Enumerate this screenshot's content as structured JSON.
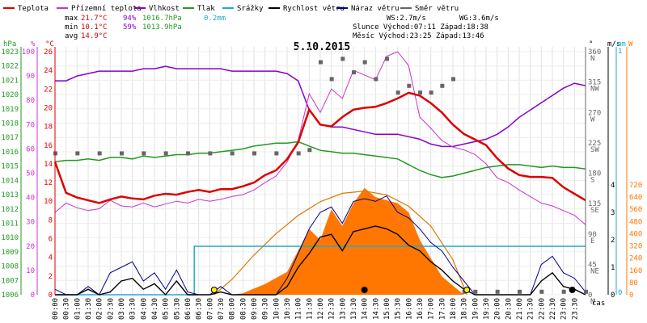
{
  "colors": {
    "temp": "#dd0000",
    "feels": "#cc33cc",
    "humidity": "#8800cc",
    "pressure": "#229922",
    "rain": "#22aacc",
    "wind_speed": "#000000",
    "gust": "#000088",
    "direction": "#666666",
    "solar": "#ff7700",
    "sun_curve": "#dd7700"
  },
  "legend": [
    {
      "key": "temp",
      "label": "Teplota"
    },
    {
      "key": "feels",
      "label": "Přízemní teplota"
    },
    {
      "key": "humidity",
      "label": "Vlhkost"
    },
    {
      "key": "pressure",
      "label": "Tlak"
    },
    {
      "key": "rain",
      "label": "Srážky"
    },
    {
      "key": "wind_speed",
      "label": "Rychlost větru"
    },
    {
      "key": "gust",
      "label": "Náraz větru"
    },
    {
      "key": "direction",
      "label": "Směr větru"
    }
  ],
  "stats": {
    "max_label": "max",
    "max_temp": "21.7°C",
    "max_hum": "94%",
    "max_press": "1016.7hPa",
    "max_rain": "0.2mm",
    "min_label": "min",
    "min_temp": "10.1°C",
    "min_hum": "59%",
    "min_press": "1013.9hPa",
    "avg_label": "avg",
    "avg_temp": "14.9°C"
  },
  "info": {
    "ws": "WS:2.7m/s",
    "wg": "WG:3.6m/s",
    "sun": "Slunce Východ:07:11  Západ:18:38",
    "moon": "Měsíc  Východ:23:25  Západ:13:46"
  },
  "chart_data": {
    "type": "line",
    "title": "5.10.2015",
    "xlabel": "čas",
    "x_ticks": [
      "00:00",
      "00:30",
      "01:00",
      "01:30",
      "02:00",
      "02:30",
      "03:00",
      "03:30",
      "04:00",
      "04:30",
      "05:00",
      "05:30",
      "06:00",
      "06:30",
      "07:00",
      "07:30",
      "08:00",
      "08:30",
      "09:00",
      "09:30",
      "10:00",
      "10:30",
      "11:00",
      "11:30",
      "12:00",
      "12:30",
      "13:00",
      "13:30",
      "14:00",
      "14:30",
      "15:00",
      "15:30",
      "16:00",
      "16:30",
      "17:00",
      "17:30",
      "18:00",
      "18:30",
      "19:00",
      "19:30",
      "20:00",
      "20:30",
      "21:00",
      "21:30",
      "22:00",
      "22:30",
      "23:00",
      "23:30"
    ],
    "axes": {
      "hPa": {
        "label": "hPa",
        "range": [
          1006,
          1023
        ],
        "ticks": [
          1006,
          1007,
          1008,
          1009,
          1010,
          1011,
          1012,
          1013,
          1014,
          1015,
          1016,
          1017,
          1018,
          1019,
          1020,
          1021,
          1022,
          1023
        ]
      },
      "percent": {
        "label": "%",
        "range": [
          0,
          100
        ],
        "ticks": [
          0,
          10,
          20,
          30,
          40,
          50,
          60,
          70,
          80,
          90,
          100
        ]
      },
      "celsius": {
        "label": "°C",
        "range": [
          0,
          26
        ],
        "ticks": [
          0,
          2,
          4,
          6,
          8,
          10,
          12,
          14,
          16,
          18,
          20,
          22,
          24,
          26
        ]
      },
      "degrees": {
        "label": "°",
        "ticks": [
          {
            "v": 0,
            "d": "N"
          },
          {
            "v": 45,
            "d": "NE"
          },
          {
            "v": 90,
            "d": "E"
          },
          {
            "v": 135,
            "d": "SE"
          },
          {
            "v": 180,
            "d": "S"
          },
          {
            "v": 225,
            "d": "SW"
          },
          {
            "v": 270,
            "d": "W"
          },
          {
            "v": 315,
            "d": "NW"
          },
          {
            "v": 360,
            "d": "N"
          }
        ]
      },
      "ms": {
        "label": "m/s",
        "range": [
          0,
          4
        ],
        "ticks": [
          0,
          1,
          2,
          3,
          4
        ]
      },
      "mm": {
        "label": "mm",
        "ticks": [
          0,
          1
        ]
      },
      "W": {
        "label": "W",
        "range": [
          0,
          720
        ],
        "ticks": [
          0,
          80,
          160,
          240,
          320,
          400,
          480,
          560,
          640,
          720
        ]
      }
    },
    "series": [
      {
        "name": "Teplota",
        "unit": "°C",
        "x": [
          0,
          0.5,
          1,
          1.5,
          2,
          2.5,
          3,
          3.5,
          4,
          4.5,
          5,
          5.5,
          6,
          6.5,
          7,
          7.5,
          8,
          8.5,
          9,
          9.5,
          10,
          10.5,
          11,
          11.5,
          12,
          12.5,
          13,
          13.5,
          14,
          14.5,
          15,
          15.5,
          16,
          16.5,
          17,
          17.5,
          18,
          18.5,
          19,
          19.5,
          20,
          20.5,
          21,
          21.5,
          22,
          22.5,
          23,
          23.5,
          24
        ],
        "values": [
          14.2,
          10.9,
          10.4,
          10.1,
          9.8,
          10.2,
          10.5,
          10.3,
          10.2,
          10.6,
          10.8,
          10.7,
          11.0,
          11.2,
          11.0,
          11.3,
          11.3,
          11.6,
          12.0,
          12.8,
          13.3,
          14.5,
          16.3,
          19.8,
          18.2,
          18.0,
          19.0,
          19.8,
          20.0,
          20.1,
          20.5,
          21.0,
          21.6,
          21.3,
          20.5,
          19.5,
          18.2,
          17.2,
          16.6,
          16.0,
          14.6,
          13.5,
          12.8,
          12.6,
          12.6,
          12.5,
          11.5,
          10.8,
          10.1
        ]
      },
      {
        "name": "Přízemní teplota",
        "unit": "°C",
        "x": [
          0,
          0.5,
          1,
          1.5,
          2,
          2.5,
          3,
          3.5,
          4,
          4.5,
          5,
          5.5,
          6,
          6.5,
          7,
          7.5,
          8,
          8.5,
          9,
          9.5,
          10,
          10.5,
          11,
          11.5,
          12,
          12.5,
          13,
          13.5,
          14,
          14.5,
          15,
          15.5,
          16,
          16.5,
          17,
          17.5,
          18,
          18.5,
          19,
          19.5,
          20,
          20.5,
          21,
          21.5,
          22,
          22.5,
          23,
          23.5,
          24
        ],
        "values": [
          8.8,
          9.8,
          9.3,
          9.0,
          9.2,
          10.1,
          9.5,
          9.4,
          9.8,
          9.4,
          9.7,
          10.0,
          9.8,
          10.2,
          10.0,
          10.2,
          10.5,
          10.7,
          11.2,
          12.0,
          12.7,
          14.2,
          16.5,
          21.5,
          19.5,
          22.0,
          21.0,
          24.0,
          23.5,
          23.0,
          25.5,
          26.0,
          24.5,
          19.0,
          17.8,
          16.5,
          15.8,
          15.5,
          15.0,
          14.0,
          12.5,
          12.0,
          11.2,
          10.5,
          9.8,
          9.5,
          9.0,
          8.5,
          7.5
        ]
      },
      {
        "name": "Vlhkost",
        "unit": "%",
        "x": [
          0,
          0.5,
          1,
          1.5,
          2,
          2.5,
          3,
          3.5,
          4,
          4.5,
          5,
          5.5,
          6,
          6.5,
          7,
          7.5,
          8,
          8.5,
          9,
          9.5,
          10,
          10.5,
          11,
          11.5,
          12,
          12.5,
          13,
          13.5,
          14,
          14.5,
          15,
          15.5,
          16,
          16.5,
          17,
          17.5,
          18,
          18.5,
          19,
          19.5,
          20,
          20.5,
          21,
          21.5,
          22,
          22.5,
          23,
          23.5,
          24
        ],
        "values": [
          88,
          88,
          90,
          91,
          92,
          92,
          92,
          92,
          93,
          93,
          94,
          93,
          93,
          93,
          93,
          93,
          92,
          92,
          92,
          92,
          92,
          91,
          88,
          76,
          70,
          69,
          69,
          68,
          67,
          66,
          66,
          66,
          65,
          64,
          62,
          61,
          61,
          62,
          63,
          64,
          66,
          69,
          73,
          76,
          79,
          82,
          85,
          87,
          86
        ]
      },
      {
        "name": "Tlak",
        "unit": "hPa",
        "x": [
          0,
          0.5,
          1,
          1.5,
          2,
          2.5,
          3,
          3.5,
          4,
          4.5,
          5,
          5.5,
          6,
          6.5,
          7,
          7.5,
          8,
          8.5,
          9,
          9.5,
          10,
          10.5,
          11,
          11.5,
          12,
          12.5,
          13,
          13.5,
          14,
          14.5,
          15,
          15.5,
          16,
          16.5,
          17,
          17.5,
          18,
          18.5,
          19,
          19.5,
          20,
          20.5,
          21,
          21.5,
          22,
          22.5,
          23,
          23.5,
          24
        ],
        "values": [
          1015.3,
          1015.4,
          1015.4,
          1015.5,
          1015.4,
          1015.6,
          1015.6,
          1015.5,
          1015.7,
          1015.6,
          1015.7,
          1015.8,
          1015.8,
          1015.9,
          1015.9,
          1016.0,
          1016.1,
          1016.2,
          1016.4,
          1016.5,
          1016.6,
          1016.6,
          1016.7,
          1016.4,
          1016.1,
          1016.0,
          1015.9,
          1015.9,
          1015.8,
          1015.7,
          1015.6,
          1015.5,
          1015.1,
          1014.7,
          1014.4,
          1014.2,
          1014.3,
          1014.5,
          1014.7,
          1014.9,
          1015.0,
          1015.1,
          1015.1,
          1015.0,
          1014.9,
          1015.0,
          1014.9,
          1014.9,
          1014.8
        ]
      },
      {
        "name": "Srážky",
        "unit": "mm",
        "x": [
          0,
          6.3,
          6.3,
          24
        ],
        "values": [
          0,
          0,
          0.2,
          0.2
        ]
      },
      {
        "name": "Směr větru",
        "unit": "°",
        "x": [
          0,
          1,
          2,
          3,
          4,
          5,
          6,
          7,
          8,
          9,
          10,
          11,
          11.5,
          12,
          12.5,
          13,
          13.5,
          14,
          14.5,
          15,
          15.5,
          16,
          16.5,
          17,
          17.5,
          18,
          18.5,
          19,
          20,
          21,
          22,
          23,
          24
        ],
        "values": [
          210,
          210,
          210,
          210,
          210,
          210,
          210,
          210,
          210,
          210,
          210,
          210,
          215,
          345,
          320,
          350,
          330,
          345,
          320,
          350,
          300,
          310,
          300,
          300,
          310,
          320,
          5,
          5,
          5,
          5,
          5,
          5,
          5
        ]
      },
      {
        "name": "Rychlost větru",
        "unit": "m/s",
        "x": [
          0,
          0.5,
          1,
          1.5,
          2,
          2.5,
          3,
          3.5,
          4,
          4.5,
          5,
          5.5,
          6,
          6.5,
          7,
          7.5,
          8,
          8.5,
          9,
          9.5,
          10,
          10.5,
          11,
          11.5,
          12,
          12.5,
          13,
          13.5,
          14,
          14.5,
          15,
          15.5,
          16,
          16.5,
          17,
          17.5,
          18,
          18.5,
          19,
          19.5,
          20,
          20.5,
          21,
          21.5,
          22,
          22.5,
          23,
          23.5,
          24
        ],
        "values": [
          0,
          0,
          0,
          0.2,
          0,
          0.1,
          0.5,
          0.6,
          0.2,
          0.4,
          0,
          0.5,
          0,
          0,
          0,
          0.1,
          0,
          0,
          0,
          0,
          0,
          0.3,
          1.0,
          1.5,
          2.1,
          2.2,
          1.6,
          2.3,
          2.4,
          2.5,
          2.4,
          2.2,
          1.8,
          1.6,
          1.2,
          0.9,
          0.5,
          0.2,
          0,
          0,
          0,
          0,
          0,
          0,
          0.5,
          0.8,
          0.3,
          0.2,
          0
        ]
      },
      {
        "name": "Náraz větru",
        "unit": "m/s",
        "x": [
          0,
          0.5,
          1,
          1.5,
          2,
          2.5,
          3,
          3.5,
          4,
          4.5,
          5,
          5.5,
          6,
          6.5,
          7,
          7.5,
          8,
          8.5,
          9,
          9.5,
          10,
          10.5,
          11,
          11.5,
          12,
          12.5,
          13,
          13.5,
          14,
          14.5,
          15,
          15.5,
          16,
          16.5,
          17,
          17.5,
          18,
          18.5,
          19,
          19.5,
          20,
          20.5,
          21,
          21.5,
          22,
          22.5,
          23,
          23.5,
          24
        ],
        "values": [
          0.2,
          0,
          0,
          0.3,
          0,
          0.8,
          1.0,
          1.2,
          0.5,
          0.8,
          0.2,
          0.9,
          0.1,
          0,
          0,
          0.3,
          0,
          0,
          0,
          0,
          0,
          0.6,
          1.5,
          2.4,
          3.0,
          3.2,
          2.6,
          3.4,
          3.5,
          3.4,
          3.6,
          3.0,
          2.8,
          2.4,
          1.9,
          1.6,
          1.0,
          0.5,
          0,
          0,
          0,
          0,
          0,
          0,
          1.1,
          1.4,
          0.8,
          0.6,
          0.1
        ]
      },
      {
        "name": "Solar",
        "unit": "W",
        "x": [
          0,
          6.5,
          7,
          7.5,
          8,
          8.5,
          9,
          9.5,
          10,
          10.5,
          11,
          11.5,
          12,
          12.5,
          13,
          13.5,
          14,
          14.5,
          15,
          15.5,
          16,
          16.5,
          17,
          17.5,
          18,
          18.5,
          19,
          24
        ],
        "values": [
          0,
          0,
          0,
          0,
          0,
          10,
          40,
          70,
          110,
          150,
          290,
          430,
          360,
          560,
          450,
          600,
          700,
          640,
          620,
          600,
          540,
          360,
          240,
          120,
          60,
          0,
          0,
          0
        ]
      },
      {
        "name": "Sun curve",
        "unit": "W",
        "x": [
          7.2,
          8,
          9,
          10,
          11,
          12,
          13,
          14,
          15,
          16,
          17,
          18,
          18.63
        ],
        "values": [
          0,
          100,
          260,
          400,
          520,
          610,
          665,
          680,
          655,
          580,
          450,
          230,
          0
        ]
      }
    ],
    "markers": [
      {
        "x": 7.2,
        "type": "sunrise"
      },
      {
        "x": 14.0,
        "type": "moon"
      },
      {
        "x": 18.63,
        "type": "sunset"
      },
      {
        "x": 23.4,
        "type": "moon"
      }
    ],
    "grid": true,
    "legend_position": "top"
  }
}
